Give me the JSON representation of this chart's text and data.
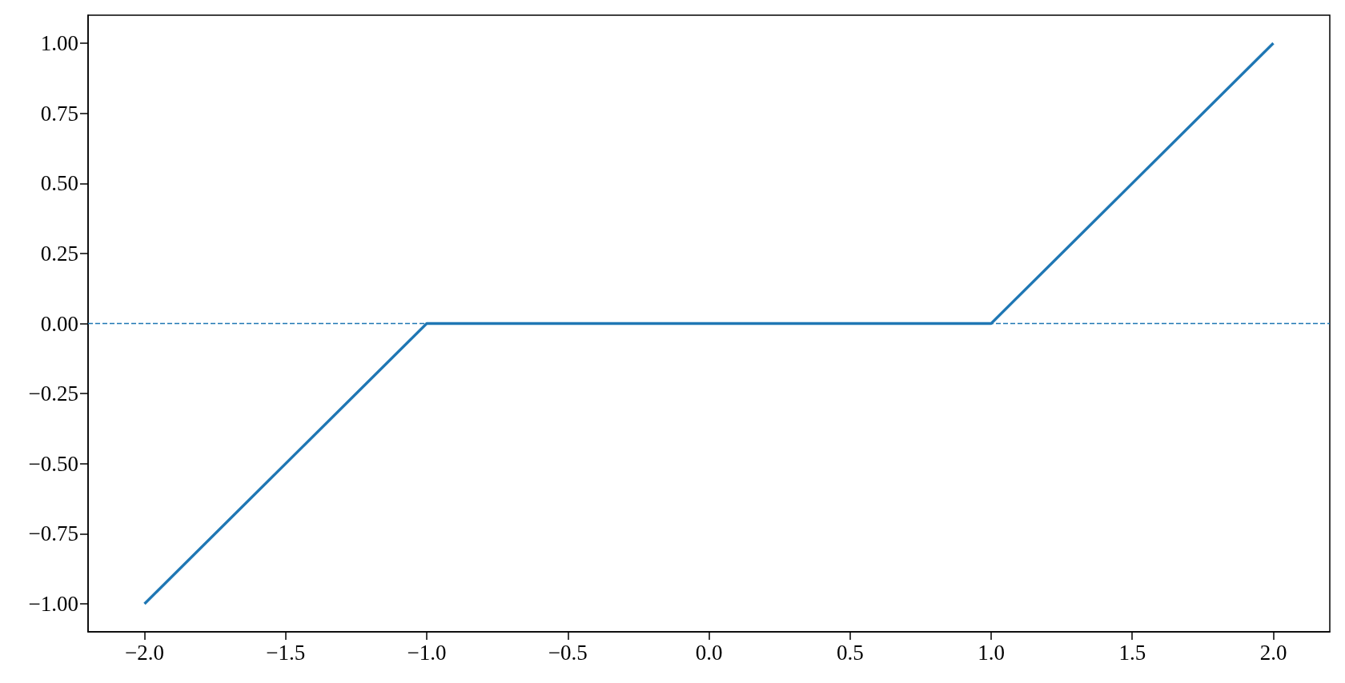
{
  "chart_data": {
    "type": "line",
    "x": [
      -2,
      -1,
      1,
      2
    ],
    "values": [
      -1,
      0,
      0,
      1
    ],
    "color": "#1f77b4",
    "marker": "none",
    "line_style": "solid",
    "xlim": [
      -2.2,
      2.2
    ],
    "ylim": [
      -1.1,
      1.1
    ],
    "xticks": [
      {
        "value": -2,
        "label": "−2.0"
      },
      {
        "value": -1.5,
        "label": "−1.5"
      },
      {
        "value": -1,
        "label": "−1.0"
      },
      {
        "value": -0.5,
        "label": "−0.5"
      },
      {
        "value": 0,
        "label": "0.0"
      },
      0.5,
      {
        "value": 1,
        "label": "1.0"
      },
      1.5,
      {
        "value": 2,
        "label": "2.0"
      }
    ],
    "yticks": [
      {
        "value": -1,
        "label": "−1.00"
      },
      {
        "value": -0.75,
        "label": "−0.75"
      },
      {
        "value": -0.5,
        "label": "−0.50"
      },
      {
        "value": -0.25,
        "label": "−0.25"
      },
      {
        "value": 0,
        "label": "0.00"
      },
      0.25,
      {
        "value": 0.5,
        "label": "0.50"
      },
      0.75,
      {
        "value": 1,
        "label": "1.00"
      }
    ],
    "ref_lines": [
      {
        "axis": "y",
        "value": 0,
        "color": "#1f77b4",
        "line_style": "dashed"
      }
    ]
  }
}
